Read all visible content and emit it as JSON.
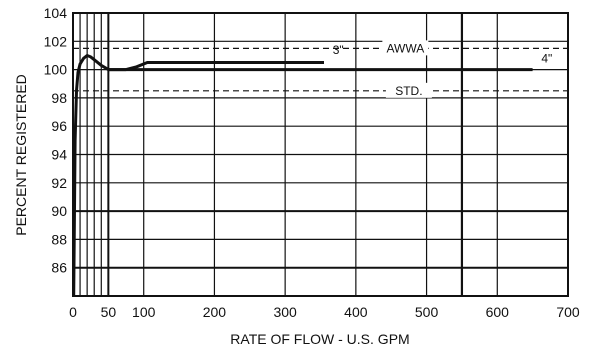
{
  "chart_data": {
    "type": "line",
    "title": "",
    "xlabel": "RATE OF FLOW - U.S. GPM",
    "ylabel": "PERCENT REGISTERED",
    "xlim": [
      0,
      700
    ],
    "ylim": [
      84,
      104
    ],
    "x_ticks": [
      {
        "value": 0,
        "label": "0"
      },
      {
        "value": 50,
        "label": "50"
      },
      {
        "value": 100,
        "label": "100"
      },
      {
        "value": 200,
        "label": "200"
      },
      {
        "value": 300,
        "label": "300"
      },
      {
        "value": 400,
        "label": "400"
      },
      {
        "value": 500,
        "label": "500"
      },
      {
        "value": 600,
        "label": "600"
      },
      {
        "value": 700,
        "label": "700"
      }
    ],
    "y_ticks": [
      {
        "value": 86,
        "label": "86"
      },
      {
        "value": 88,
        "label": "88"
      },
      {
        "value": 90,
        "label": "90"
      },
      {
        "value": 92,
        "label": "92"
      },
      {
        "value": 94,
        "label": "94"
      },
      {
        "value": 96,
        "label": "96"
      },
      {
        "value": 98,
        "label": "98"
      },
      {
        "value": 100,
        "label": "100"
      },
      {
        "value": 102,
        "label": "102"
      },
      {
        "value": 104,
        "label": "104"
      }
    ],
    "grid": true,
    "series": [
      {
        "name": "3\"",
        "x": [
          50,
          75,
          90,
          105,
          150,
          200,
          250,
          300,
          355
        ],
        "y": [
          100.0,
          100.0,
          100.2,
          100.5,
          100.5,
          100.5,
          100.5,
          100.5,
          100.5
        ]
      },
      {
        "name": "4\"",
        "x": [
          1,
          3,
          5,
          7,
          10,
          15,
          20,
          25,
          30,
          40,
          50,
          100,
          200,
          300,
          400,
          500,
          600,
          650
        ],
        "y": [
          84.0,
          95.0,
          98.5,
          99.8,
          100.4,
          100.8,
          101.0,
          100.9,
          100.7,
          100.3,
          100.0,
          100.0,
          100.0,
          100.0,
          100.0,
          100.0,
          100.0,
          100.0
        ]
      }
    ],
    "reference_lines": [
      {
        "y": 101.5,
        "style": "dashed",
        "label": "AWWA",
        "label_x": 470
      },
      {
        "y": 98.5,
        "style": "dashed",
        "label": "STD.",
        "label_x": 475
      }
    ],
    "series_labels": [
      {
        "text": "3\"",
        "x": 375,
        "y": 101.1
      },
      {
        "text": "4\"",
        "x": 670,
        "y": 100.5
      }
    ],
    "colors": {
      "line": "#111111",
      "grid": "#111111",
      "background": "#ffffff"
    }
  }
}
